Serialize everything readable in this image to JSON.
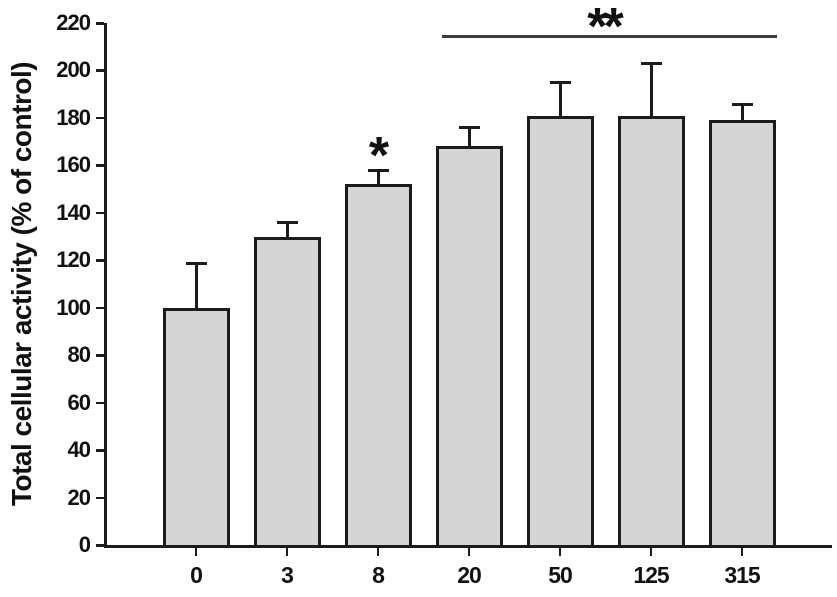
{
  "chart_data": {
    "type": "bar",
    "title": "",
    "xlabel": "",
    "ylabel": "Total cellular activity (% of control)",
    "categories": [
      "0",
      "3",
      "8",
      "20",
      "50",
      "125",
      "315"
    ],
    "values": [
      100,
      130,
      152,
      168,
      181,
      181,
      179
    ],
    "errors_upper": [
      19,
      6,
      6,
      8,
      14,
      22,
      7
    ],
    "ylim": [
      0,
      220
    ],
    "yticks": [
      0,
      20,
      40,
      60,
      80,
      100,
      120,
      140,
      160,
      180,
      200,
      220
    ],
    "grid": false,
    "legend": null,
    "bar_fill": "#d5d5d5",
    "bar_border": "#1b1b1b",
    "axis_color": "#1b1b1b",
    "text_color": "#111111",
    "annotations": [
      {
        "kind": "star",
        "text": "*",
        "bar_index": 2
      },
      {
        "kind": "bracket",
        "text": "**",
        "from_bar": 3,
        "to_bar": 6,
        "line_y_value": 215,
        "line_color": "#3c3c3c"
      }
    ]
  }
}
